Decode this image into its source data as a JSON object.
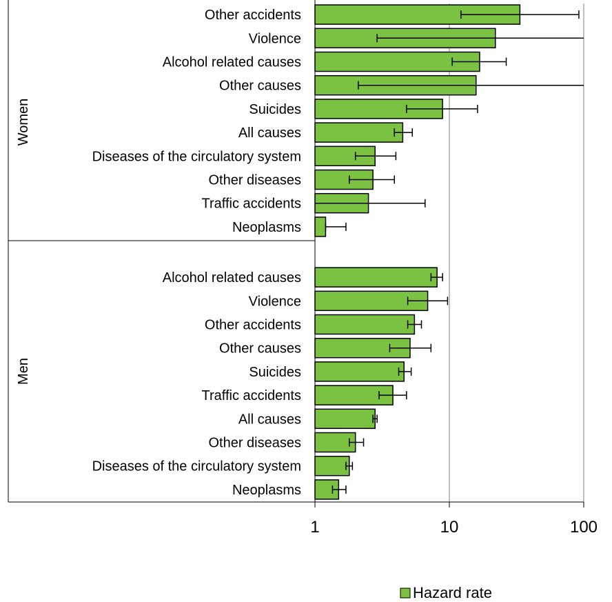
{
  "chart_data": {
    "type": "bar",
    "orientation": "horizontal",
    "x_scale": "log",
    "xlim": [
      1,
      100
    ],
    "x_ticks": [
      "1",
      "10",
      "100"
    ],
    "grid": "vertical lines at x-ticks",
    "legend_position": "bottom-right",
    "colors": {
      "bar_fill": "#7cc242",
      "bar_stroke": "#000000",
      "grid": "#808080"
    },
    "series": [
      {
        "name": "Hazard rate"
      }
    ],
    "groups": [
      {
        "name": "Women",
        "items": [
          {
            "label": "Other accidents",
            "value": 33.5,
            "ci_low": 12.2,
            "ci_high": 92
          },
          {
            "label": "Violence",
            "value": 22,
            "ci_low": 2.9,
            "ci_high": 100
          },
          {
            "label": "Alcohol related causes",
            "value": 16.8,
            "ci_low": 10.5,
            "ci_high": 26.5
          },
          {
            "label": "Other causes",
            "value": 15.8,
            "ci_low": 2.1,
            "ci_high": 100
          },
          {
            "label": "Suicides",
            "value": 8.9,
            "ci_low": 4.8,
            "ci_high": 16.2
          },
          {
            "label": "All causes",
            "value": 4.5,
            "ci_low": 3.9,
            "ci_high": 5.3
          },
          {
            "label": "Diseases of the circulatory system",
            "value": 2.8,
            "ci_low": 2.0,
            "ci_high": 4.0
          },
          {
            "label": "Other diseases",
            "value": 2.7,
            "ci_low": 1.8,
            "ci_high": 3.9
          },
          {
            "label": "Traffic accidents",
            "value": 2.5,
            "ci_low": 1.0,
            "ci_high": 6.6
          },
          {
            "label": "Neoplasms",
            "value": 1.2,
            "ci_low": 1.2,
            "ci_high": 1.7
          }
        ]
      },
      {
        "name": "Men",
        "items": [
          {
            "label": "Alcohol related causes",
            "value": 8.1,
            "ci_low": 7.3,
            "ci_high": 8.9
          },
          {
            "label": "Violence",
            "value": 6.9,
            "ci_low": 4.9,
            "ci_high": 9.7
          },
          {
            "label": "Other accidents",
            "value": 5.5,
            "ci_low": 4.9,
            "ci_high": 6.2
          },
          {
            "label": "Other causes",
            "value": 5.1,
            "ci_low": 3.6,
            "ci_high": 7.3
          },
          {
            "label": "Suicides",
            "value": 4.6,
            "ci_low": 4.2,
            "ci_high": 5.2
          },
          {
            "label": "Traffic accidents",
            "value": 3.8,
            "ci_low": 3.0,
            "ci_high": 4.8
          },
          {
            "label": "All causes",
            "value": 2.8,
            "ci_low": 2.7,
            "ci_high": 2.9
          },
          {
            "label": "Other diseases",
            "value": 2.0,
            "ci_low": 1.8,
            "ci_high": 2.3
          },
          {
            "label": "Diseases of the circulatory system",
            "value": 1.8,
            "ci_low": 1.7,
            "ci_high": 1.9
          },
          {
            "label": "Neoplasms",
            "value": 1.5,
            "ci_low": 1.35,
            "ci_high": 1.7
          }
        ]
      }
    ]
  }
}
